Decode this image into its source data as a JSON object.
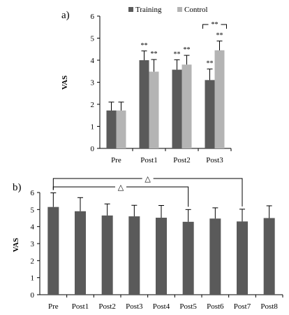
{
  "chart_data": [
    {
      "type": "bar",
      "panel_label": "a)",
      "categories": [
        "Pre",
        "Post1",
        "Post2",
        "Post3"
      ],
      "series": [
        {
          "name": "Training",
          "color": "#5a5a5a",
          "values": [
            1.72,
            4.0,
            3.57,
            3.1
          ],
          "errors": [
            0.38,
            0.42,
            0.45,
            0.5
          ],
          "annotations": [
            "",
            "**",
            "**",
            "**"
          ]
        },
        {
          "name": "Control",
          "color": "#b4b4b4",
          "values": [
            1.72,
            3.48,
            3.8,
            4.45
          ],
          "errors": [
            0.38,
            0.55,
            0.42,
            0.42
          ],
          "annotations": [
            "",
            "**",
            "**",
            "**"
          ]
        }
      ],
      "bracket": {
        "between": [
          "Training",
          "Control"
        ],
        "category": "Post3",
        "label": "**"
      },
      "ylabel": "VAS",
      "ylim": [
        0,
        6
      ],
      "yticks": [
        "0",
        "1",
        "2",
        "3",
        "4",
        "5",
        "6"
      ],
      "legend": "top",
      "grid": false
    },
    {
      "type": "bar",
      "panel_label": "b)",
      "categories": [
        "Pre",
        "Post1",
        "Post2",
        "Post3",
        "Post4",
        "Post5",
        "Post6",
        "Post7",
        "Post8"
      ],
      "series": [
        {
          "color": "#5a5a5a",
          "values": [
            5.15,
            4.9,
            4.65,
            4.6,
            4.52,
            4.28,
            4.47,
            4.3,
            4.5
          ],
          "errors": [
            0.83,
            0.8,
            0.68,
            0.65,
            0.72,
            0.72,
            0.63,
            0.72,
            0.72
          ]
        }
      ],
      "brackets": [
        {
          "from": "Pre",
          "to": "Post7",
          "label": "△"
        },
        {
          "from": "Pre",
          "to": "Post5",
          "label": "△"
        }
      ],
      "ylabel": "VAS",
      "ylim": [
        0,
        6
      ],
      "yticks": [
        "0",
        "1",
        "2",
        "3",
        "4",
        "5",
        "6"
      ],
      "grid": false
    }
  ]
}
